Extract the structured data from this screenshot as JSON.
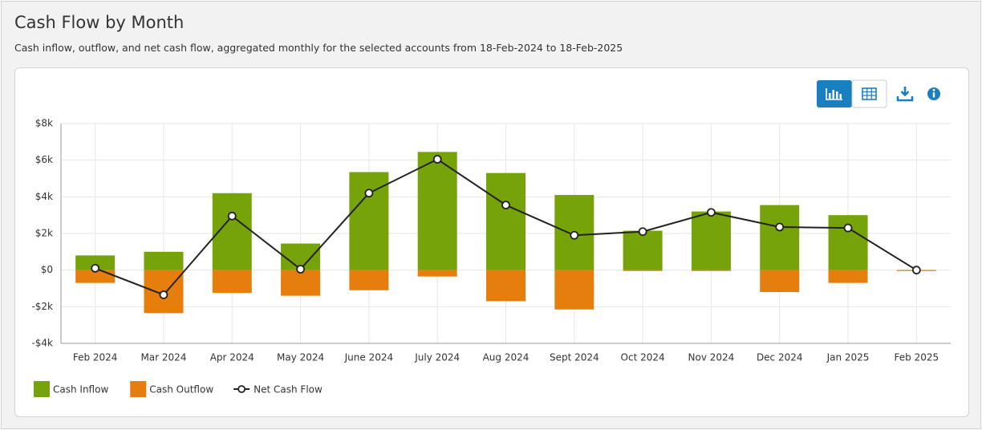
{
  "chart_data": {
    "type": "bar",
    "title": "Cash Flow by Month",
    "subtitle": "Cash inflow, outflow, and net cash flow, aggregated monthly for the selected accounts from 18-Feb-2024 to 18-Feb-2025",
    "categories": [
      "Feb 2024",
      "Mar 2024",
      "Apr 2024",
      "May 2024",
      "June 2024",
      "July 2024",
      "Aug 2024",
      "Sept 2024",
      "Oct 2024",
      "Nov 2024",
      "Dec 2024",
      "Jan 2025",
      "Feb 2025"
    ],
    "series": [
      {
        "name": "Cash Inflow",
        "type": "bar",
        "color": "#76a20a",
        "values": [
          800,
          1000,
          4200,
          1450,
          5350,
          6450,
          5300,
          4100,
          2150,
          3200,
          3550,
          3000,
          0
        ]
      },
      {
        "name": "Cash Outflow",
        "type": "bar",
        "color": "#e67e0e",
        "values": [
          -700,
          -2350,
          -1250,
          -1400,
          -1100,
          -350,
          -1700,
          -2150,
          -50,
          -50,
          -1200,
          -700,
          -20
        ]
      },
      {
        "name": "Net Cash Flow",
        "type": "line",
        "color": "#222222",
        "values": [
          100,
          -1350,
          2950,
          50,
          4200,
          6050,
          3550,
          1900,
          2100,
          3150,
          2350,
          2300,
          0
        ]
      }
    ],
    "ylim": [
      -4000,
      8000
    ],
    "yticks": [
      {
        "value": 8000,
        "label": "$8k"
      },
      {
        "value": 6000,
        "label": "$6k"
      },
      {
        "value": 4000,
        "label": "$4k"
      },
      {
        "value": 2000,
        "label": "$2k"
      },
      {
        "value": 0,
        "label": "$0"
      },
      {
        "value": -2000,
        "label": "-$2k"
      },
      {
        "value": -4000,
        "label": "-$4k"
      }
    ],
    "grid": true
  }
}
